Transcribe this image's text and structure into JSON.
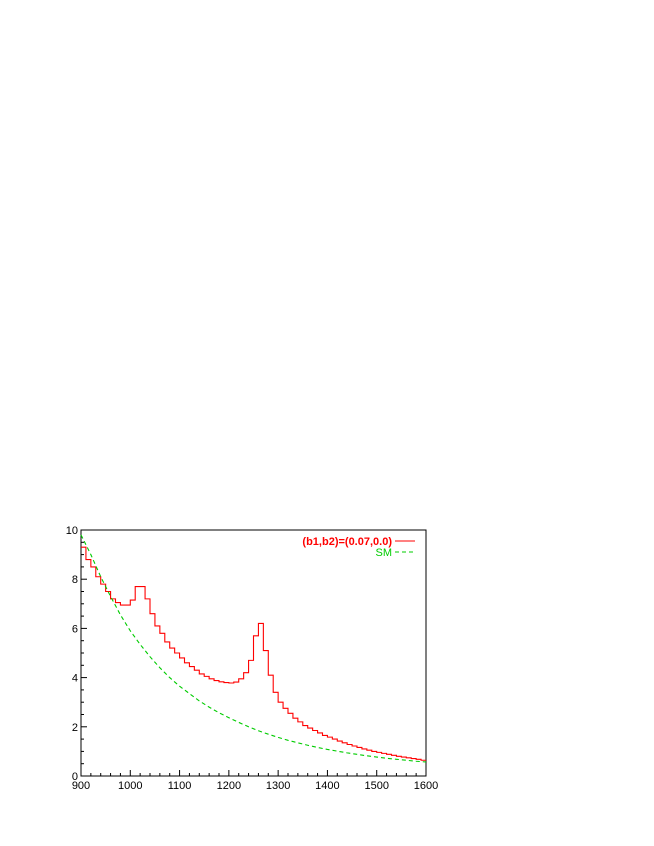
{
  "chart_data": {
    "type": "line",
    "title": "",
    "xlabel": "",
    "ylabel": "",
    "xlim": [
      900,
      1600
    ],
    "ylim": [
      0,
      10
    ],
    "x_ticks": [
      "900",
      "1000",
      "1100",
      "1200",
      "1300",
      "1400",
      "1500",
      "1600"
    ],
    "y_ticks": [
      "0",
      "2",
      "4",
      "6",
      "8",
      "10"
    ],
    "legend_position": "top-right",
    "bin_width": 10,
    "series": [
      {
        "name": "(b1,b2)=(0.07,0.0)",
        "color": "#ff0000",
        "style": "solid-step",
        "x": [
          900,
          910,
          920,
          930,
          940,
          950,
          960,
          970,
          980,
          990,
          1000,
          1010,
          1020,
          1030,
          1040,
          1050,
          1060,
          1070,
          1080,
          1090,
          1100,
          1110,
          1120,
          1130,
          1140,
          1150,
          1160,
          1170,
          1180,
          1190,
          1200,
          1210,
          1220,
          1230,
          1240,
          1250,
          1260,
          1270,
          1280,
          1290,
          1300,
          1310,
          1320,
          1330,
          1340,
          1350,
          1360,
          1370,
          1380,
          1390,
          1400,
          1410,
          1420,
          1430,
          1440,
          1450,
          1460,
          1470,
          1480,
          1490,
          1500,
          1510,
          1520,
          1530,
          1540,
          1550,
          1560,
          1570,
          1580,
          1590
        ],
        "values": [
          9.3,
          8.8,
          8.5,
          8.1,
          7.8,
          7.5,
          7.2,
          7.05,
          6.95,
          6.95,
          7.15,
          7.7,
          7.7,
          7.2,
          6.6,
          6.1,
          5.8,
          5.45,
          5.2,
          5.0,
          4.8,
          4.6,
          4.45,
          4.3,
          4.15,
          4.05,
          3.95,
          3.88,
          3.83,
          3.8,
          3.78,
          3.82,
          3.95,
          4.2,
          4.7,
          5.7,
          6.2,
          5.1,
          4.1,
          3.4,
          3.0,
          2.75,
          2.55,
          2.35,
          2.2,
          2.05,
          1.95,
          1.85,
          1.75,
          1.65,
          1.58,
          1.5,
          1.42,
          1.35,
          1.28,
          1.22,
          1.16,
          1.1,
          1.05,
          1.0,
          0.96,
          0.92,
          0.88,
          0.84,
          0.8,
          0.77,
          0.74,
          0.71,
          0.68,
          0.64
        ]
      },
      {
        "name": "SM",
        "color": "#00cc00",
        "style": "dashed",
        "x": [
          900,
          920,
          940,
          960,
          980,
          1000,
          1020,
          1040,
          1060,
          1080,
          1100,
          1120,
          1140,
          1160,
          1180,
          1200,
          1220,
          1240,
          1260,
          1280,
          1300,
          1320,
          1340,
          1360,
          1380,
          1400,
          1420,
          1440,
          1460,
          1480,
          1500,
          1520,
          1540,
          1560,
          1580,
          1600
        ],
        "values": [
          9.8,
          9.0,
          8.1,
          7.3,
          6.55,
          5.9,
          5.35,
          4.85,
          4.4,
          4.0,
          3.65,
          3.35,
          3.05,
          2.8,
          2.57,
          2.37,
          2.18,
          2.0,
          1.84,
          1.7,
          1.57,
          1.45,
          1.35,
          1.25,
          1.16,
          1.08,
          1.01,
          0.94,
          0.88,
          0.82,
          0.77,
          0.72,
          0.68,
          0.64,
          0.6,
          0.57
        ]
      }
    ]
  }
}
